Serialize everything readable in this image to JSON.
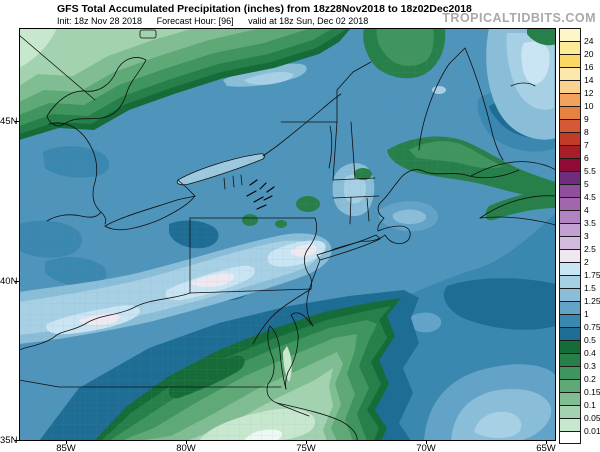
{
  "header": {
    "title": "GFS Total Accumulated Precipitation (inches) from 18z28Nov2018 to 18z02Dec2018",
    "init": "Init: 18z Nov 28 2018",
    "forecast_hour": "Forecast Hour: [96]",
    "valid": "valid at 18z Sun, Dec 02 2018",
    "watermark": "TROPICALTIDBITS.COM"
  },
  "map": {
    "lat_labels": [
      "45N",
      "40N",
      "35N"
    ],
    "lon_labels": [
      "85W",
      "80W",
      "75W",
      "70W",
      "65W"
    ]
  },
  "colorbar": {
    "boundary_labels": [
      "24",
      "20",
      "16",
      "14",
      "12",
      "10",
      "9",
      "8",
      "7",
      "6",
      "5.5",
      "5",
      "4.5",
      "4",
      "3.5",
      "3",
      "2.5",
      "2",
      "1.75",
      "1.5",
      "1.25",
      "1",
      "0.75",
      "0.5",
      "0.4",
      "0.3",
      "0.2",
      "0.15",
      "0.1",
      "0.05",
      "0.01"
    ],
    "cells": [
      {
        "color": "#fcf6c8",
        "stipple": false
      },
      {
        "color": "#fcea96",
        "stipple": false
      },
      {
        "color": "#fbd763",
        "stipple": false
      },
      {
        "color": "#fce8ad",
        "stipple": true
      },
      {
        "color": "#f9d290",
        "stipple": true
      },
      {
        "color": "#f2a25b",
        "stipple": false
      },
      {
        "color": "#e5823f",
        "stipple": false
      },
      {
        "color": "#d45934",
        "stipple": false
      },
      {
        "color": "#c23b28",
        "stipple": false
      },
      {
        "color": "#a81e28",
        "stipple": false
      },
      {
        "color": "#8f0a36",
        "stipple": false
      },
      {
        "color": "#6f2d7d",
        "stipple": true
      },
      {
        "color": "#8f4f9c",
        "stipple": false
      },
      {
        "color": "#a166ae",
        "stipple": false
      },
      {
        "color": "#b184c1",
        "stipple": false
      },
      {
        "color": "#c2a0d2",
        "stipple": false
      },
      {
        "color": "#d3bbe0",
        "stipple": false
      },
      {
        "color": "#efe7f1",
        "stipple": true
      },
      {
        "color": "#c9e5f3",
        "stipple": false
      },
      {
        "color": "#a7d0e5",
        "stipple": false
      },
      {
        "color": "#8abdd8",
        "stipple": false
      },
      {
        "color": "#63a3c8",
        "stipple": false
      },
      {
        "color": "#3a87b0",
        "stipple": false
      },
      {
        "color": "#1e6d94",
        "stipple": false
      },
      {
        "color": "#156c38",
        "stipple": false
      },
      {
        "color": "#27804a",
        "stipple": false
      },
      {
        "color": "#3f955d",
        "stipple": false
      },
      {
        "color": "#5fa977",
        "stipple": false
      },
      {
        "color": "#80bd92",
        "stipple": false
      },
      {
        "color": "#a3d2b0",
        "stipple": false
      },
      {
        "color": "#c8e7cf",
        "stipple": false
      },
      {
        "color": "#ffffff",
        "stipple": false
      }
    ]
  },
  "chart_data": {
    "type": "heatmap",
    "title": "GFS Total Accumulated Precipitation (inches) from 18z28Nov2018 to 18z02Dec2018",
    "units": "inches",
    "levels": [
      0.01,
      0.05,
      0.1,
      0.15,
      0.2,
      0.3,
      0.4,
      0.5,
      0.75,
      1,
      1.25,
      1.5,
      1.75,
      2,
      2.5,
      3,
      3.5,
      4,
      4.5,
      5,
      5.5,
      6,
      7,
      8,
      9,
      10,
      12,
      14,
      16,
      20,
      24
    ],
    "palette_low_to_high": [
      "#ffffff",
      "#c8e7cf",
      "#a3d2b0",
      "#80bd92",
      "#5fa977",
      "#3f955d",
      "#27804a",
      "#156c38",
      "#1e6d94",
      "#3a87b0",
      "#63a3c8",
      "#8abdd8",
      "#a7d0e5",
      "#c9e5f3",
      "#efe7f1",
      "#d3bbe0",
      "#c2a0d2",
      "#b184c1",
      "#a166ae",
      "#8f4f9c",
      "#6f2d7d",
      "#8f0a36",
      "#a81e28",
      "#c23b28",
      "#d45934",
      "#e5823f",
      "#f2a25b",
      "#f9d290",
      "#fce8ad",
      "#fbd763",
      "#fcea96",
      "#fcf6c8"
    ],
    "x_ticks": [
      "85W",
      "80W",
      "75W",
      "70W",
      "65W"
    ],
    "y_ticks": [
      "35N",
      "40N",
      "45N"
    ],
    "legend_position": "right"
  }
}
